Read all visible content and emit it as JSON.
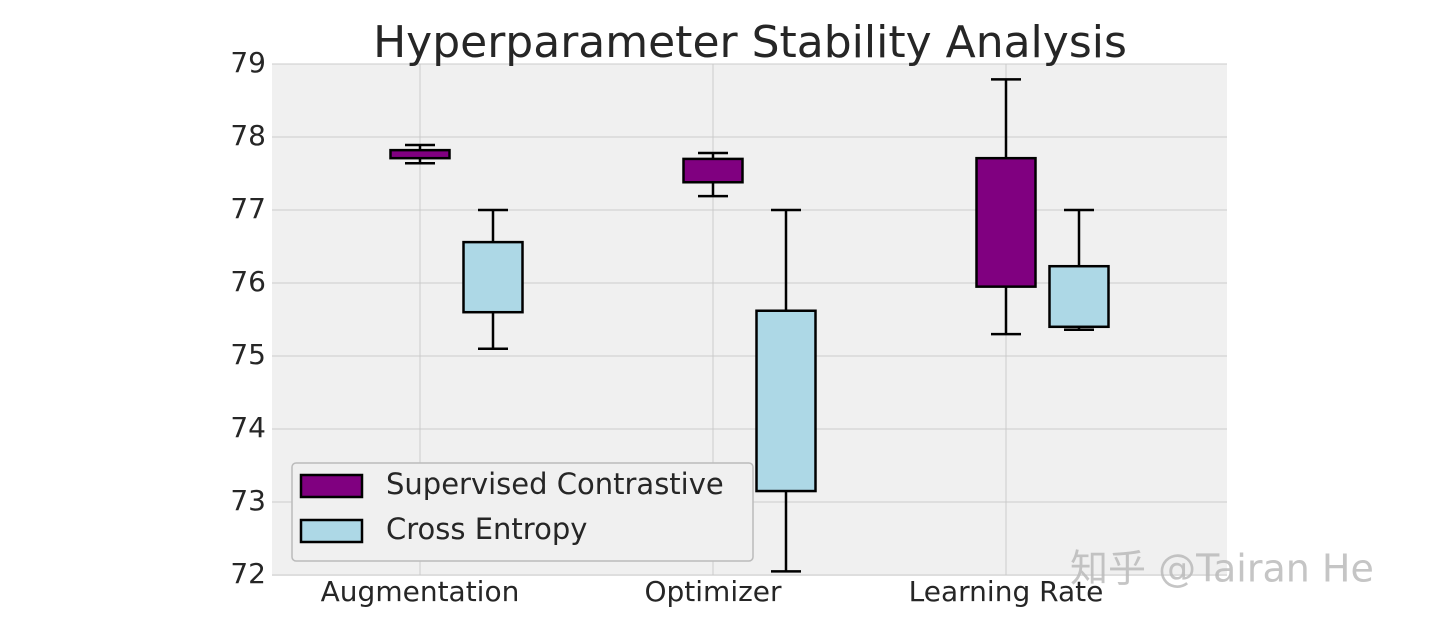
{
  "chart_data": {
    "type": "box",
    "title": "Hyperparameter Stability Analysis",
    "categories": [
      "Augmentation",
      "Optimizer",
      "Learning Rate"
    ],
    "series": [
      {
        "name": "Supervised Contrastive",
        "color": "#800080",
        "boxes": [
          {
            "whislo": 77.64,
            "q1": 77.71,
            "q3": 77.82,
            "whishi": 77.89
          },
          {
            "whislo": 77.19,
            "q1": 77.38,
            "q3": 77.7,
            "whishi": 77.78
          },
          {
            "whislo": 75.3,
            "q1": 75.95,
            "q3": 77.71,
            "whishi": 78.79
          }
        ]
      },
      {
        "name": "Cross Entropy",
        "color": "#add8e6",
        "boxes": [
          {
            "whislo": 75.1,
            "q1": 75.6,
            "q3": 76.56,
            "whishi": 77.0
          },
          {
            "whislo": 72.05,
            "q1": 73.15,
            "q3": 75.62,
            "whishi": 77.0
          },
          {
            "whislo": 75.36,
            "q1": 75.4,
            "q3": 76.23,
            "whishi": 77.0
          }
        ]
      }
    ],
    "ylim": [
      72,
      79
    ],
    "yticks": [
      72,
      73,
      74,
      75,
      76,
      77,
      78,
      79
    ],
    "grid": true,
    "legend": "lower left",
    "watermark": "知乎 @Tairan He"
  }
}
